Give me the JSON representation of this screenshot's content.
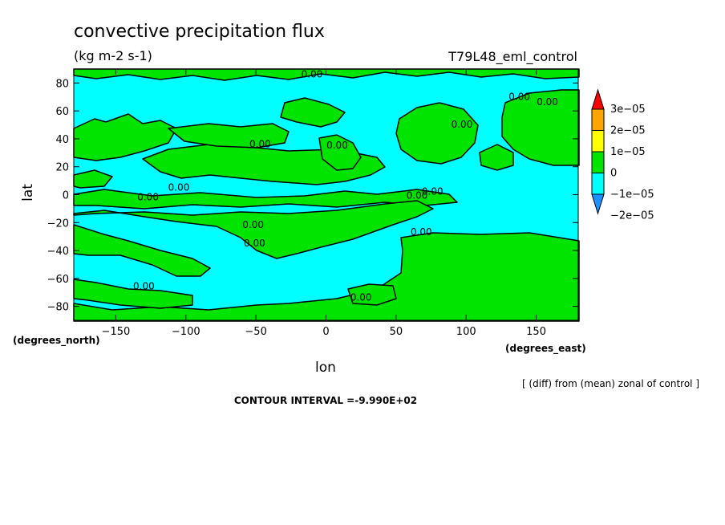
{
  "chart_data": {
    "type": "heatmap",
    "title": "convective precipitation flux",
    "units": "(kg m-2 s-1)",
    "experiment": "T79L48_eml_control",
    "xlabel": "lon",
    "ylabel": "lat",
    "x_units": "(degrees_east)",
    "y_units": "(degrees_north)",
    "xlim": [
      -180,
      180
    ],
    "ylim": [
      -90,
      90
    ],
    "x_ticks": [
      -150,
      -100,
      -50,
      0,
      50,
      100,
      150
    ],
    "y_ticks": [
      80,
      60,
      40,
      20,
      0,
      -20,
      -40,
      -60,
      -80
    ],
    "x_tick_labels": [
      "−150",
      "−100",
      "−50",
      "0",
      "50",
      "100",
      "150"
    ],
    "y_tick_labels": [
      "80",
      "60",
      "40",
      "20",
      "0",
      "−20",
      "−40",
      "−60",
      "−80"
    ],
    "colorbar": {
      "labels": [
        "3e−05",
        "2e−05",
        "1e−05",
        "0",
        "−1e−05",
        "−2e−05"
      ],
      "levels": [
        -2e-05,
        -1e-05,
        0,
        1e-05,
        2e-05,
        3e-05
      ],
      "colors": [
        "#1e90ff",
        "#00ffff",
        "#00e400",
        "#ffff00",
        "#ffa500",
        "#ff0000"
      ]
    },
    "field_colors": {
      "negative": "#00ffff",
      "positive": "#00e400"
    },
    "contour_label": "0.00",
    "contour_label_positions": [
      {
        "lon": -10,
        "lat": 84
      },
      {
        "lon": 138,
        "lat": 68
      },
      {
        "lon": 158,
        "lat": 64
      },
      {
        "lon": 97,
        "lat": 48
      },
      {
        "lon": -47,
        "lat": 34
      },
      {
        "lon": 8,
        "lat": 33
      },
      {
        "lon": -105,
        "lat": 3
      },
      {
        "lon": 76,
        "lat": 0
      },
      {
        "lon": 65,
        "lat": -3
      },
      {
        "lon": -127,
        "lat": -4
      },
      {
        "lon": -52,
        "lat": -24
      },
      {
        "lon": -51,
        "lat": -37
      },
      {
        "lon": 68,
        "lat": -29
      },
      {
        "lon": -130,
        "lat": -68
      },
      {
        "lon": 25,
        "lat": -76
      }
    ],
    "contour_interval_text": "CONTOUR INTERVAL =-9.990E+02",
    "note": "[ (diff) from (mean) zonal of control ]",
    "grid": false
  }
}
